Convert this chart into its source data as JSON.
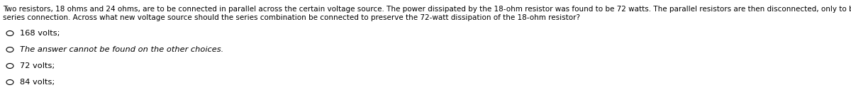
{
  "background_color": "#ffffff",
  "question_text_line1": "Two resistors, 18 ohms and 24 ohms, are to be connected in parallel across the certain voltage source. The power dissipated by the 18-ohm resistor was found to be 72 watts. The parallel resistors are then disconnected, only to be reconnected in a",
  "question_text_line2": "series connection. Across what new voltage source should the series combination be connected to preserve the 72-watt dissipation of the 18-ohm resistor?",
  "choices": [
    "168 volts;",
    "The answer cannot be found on the other choices.",
    "72 volts;",
    "84 volts;"
  ],
  "choice_italic": [
    false,
    true,
    false,
    false
  ],
  "text_color": "#000000",
  "question_fontsize": 7.5,
  "choice_fontsize": 8.2,
  "fig_width": 12.0,
  "fig_height": 1.51
}
